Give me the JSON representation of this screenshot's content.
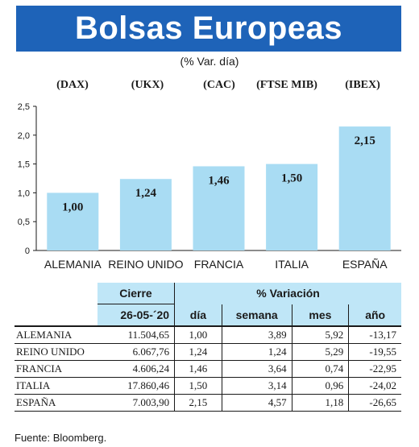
{
  "header": {
    "title": "Bolsas Europeas",
    "subtitle": "(% Var. día)"
  },
  "tickers": [
    "(DAX)",
    "(UKX)",
    "(CAC)",
    "(FTSE MIB)",
    "(IBEX)"
  ],
  "colors": {
    "title_bg": "#1e63b8",
    "bar": "#a9dcf3",
    "table_header": "#bfe6f7"
  },
  "chart_data": {
    "type": "bar",
    "categories": [
      "ALEMANIA",
      "REINO UNIDO",
      "FRANCIA",
      "ITALIA",
      "ESPAÑA"
    ],
    "values": [
      1.0,
      1.24,
      1.46,
      1.5,
      2.15
    ],
    "value_labels": [
      "1,00",
      "1,24",
      "1,46",
      "1,50",
      "2,15"
    ],
    "title": "",
    "xlabel": "",
    "ylabel": "",
    "ylim": [
      0,
      2.5
    ],
    "yticks": [
      0,
      0.5,
      1.0,
      1.5,
      2.0,
      2.5
    ],
    "ytick_labels": [
      "0",
      "0,5",
      "1,0",
      "1,5",
      "2,0",
      "2,5"
    ],
    "grid": false,
    "legend": "none"
  },
  "table": {
    "group_cierre": "Cierre",
    "group_variacion": "% Variación",
    "date": "26-05-´20",
    "columns": [
      "día",
      "semana",
      "mes",
      "año"
    ],
    "rows": [
      {
        "name": "ALEMANIA",
        "cierre": "11.504,65",
        "dia": "1,00",
        "semana": "3,89",
        "mes": "5,92",
        "ano": "-13,17"
      },
      {
        "name": "REINO UNIDO",
        "cierre": "6.067,76",
        "dia": "1,24",
        "semana": "1,24",
        "mes": "5,29",
        "ano": "-19,55"
      },
      {
        "name": "FRANCIA",
        "cierre": "4.606,24",
        "dia": "1,46",
        "semana": "3,64",
        "mes": "0,74",
        "ano": "-22,95"
      },
      {
        "name": "ITALIA",
        "cierre": "17.860,46",
        "dia": "1,50",
        "semana": "3,14",
        "mes": "0,96",
        "ano": "-24,02"
      },
      {
        "name": "ESPAÑA",
        "cierre": "7.003,90",
        "dia": "2,15",
        "semana": "4,57",
        "mes": "1,18",
        "ano": "-26,65"
      }
    ]
  },
  "source": "Fuente: Bloomberg."
}
